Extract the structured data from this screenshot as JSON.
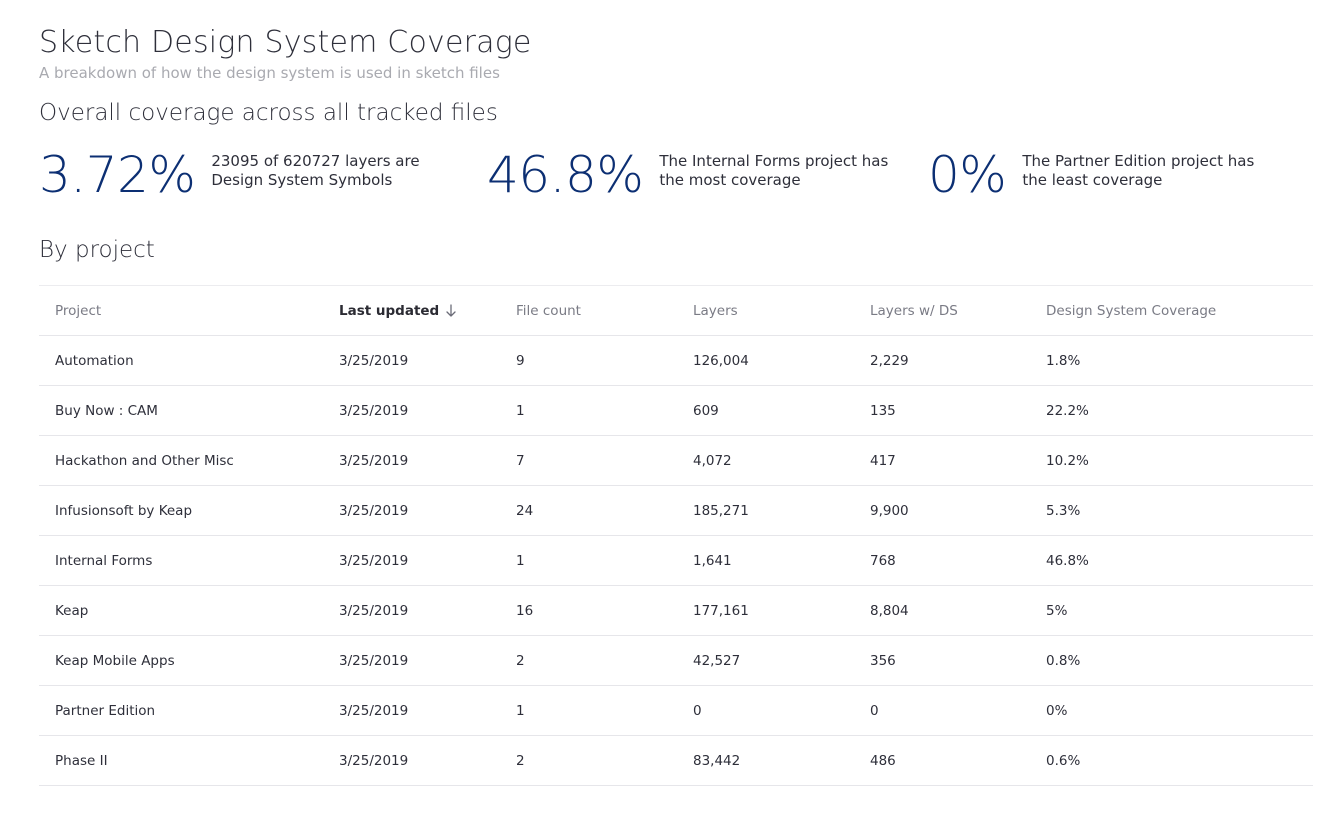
{
  "header": {
    "title": "Sketch Design System Coverage",
    "subtitle": "A breakdown of how the design system is used in sketch files"
  },
  "overall": {
    "heading": "Overall coverage across all tracked files",
    "stats": [
      {
        "value": "3.72%",
        "description": "23095 of 620727 layers are Design System Symbols"
      },
      {
        "value": "46.8%",
        "description": "The Internal Forms project has the most coverage"
      },
      {
        "value": "0%",
        "description": "The Partner Edition project has the least coverage"
      }
    ]
  },
  "by_project": {
    "heading": "By project",
    "columns": [
      "Project",
      "Last updated",
      "File count",
      "Layers",
      "Layers w/ DS",
      "Design System Coverage"
    ],
    "sort_icon": "arrow-down-icon",
    "rows": [
      [
        "Automation",
        "3/25/2019",
        "9",
        "126,004",
        "2,229",
        "1.8%"
      ],
      [
        "Buy Now : CAM",
        "3/25/2019",
        "1",
        "609",
        "135",
        "22.2%"
      ],
      [
        "Hackathon and Other Misc",
        "3/25/2019",
        "7",
        "4,072",
        "417",
        "10.2%"
      ],
      [
        "Infusionsoft by Keap",
        "3/25/2019",
        "24",
        "185,271",
        "9,900",
        "5.3%"
      ],
      [
        "Internal Forms",
        "3/25/2019",
        "1",
        "1,641",
        "768",
        "46.8%"
      ],
      [
        "Keap",
        "3/25/2019",
        "16",
        "177,161",
        "8,804",
        "5%"
      ],
      [
        "Keap Mobile Apps",
        "3/25/2019",
        "2",
        "42,527",
        "356",
        "0.8%"
      ],
      [
        "Partner Edition",
        "3/25/2019",
        "1",
        "0",
        "0",
        "0%"
      ],
      [
        "Phase II",
        "3/25/2019",
        "2",
        "83,442",
        "486",
        "0.6%"
      ]
    ]
  },
  "colors": {
    "accent": "#0c2f73",
    "subtle_text": "#a9aab0",
    "divider": "#e6e6ea"
  }
}
